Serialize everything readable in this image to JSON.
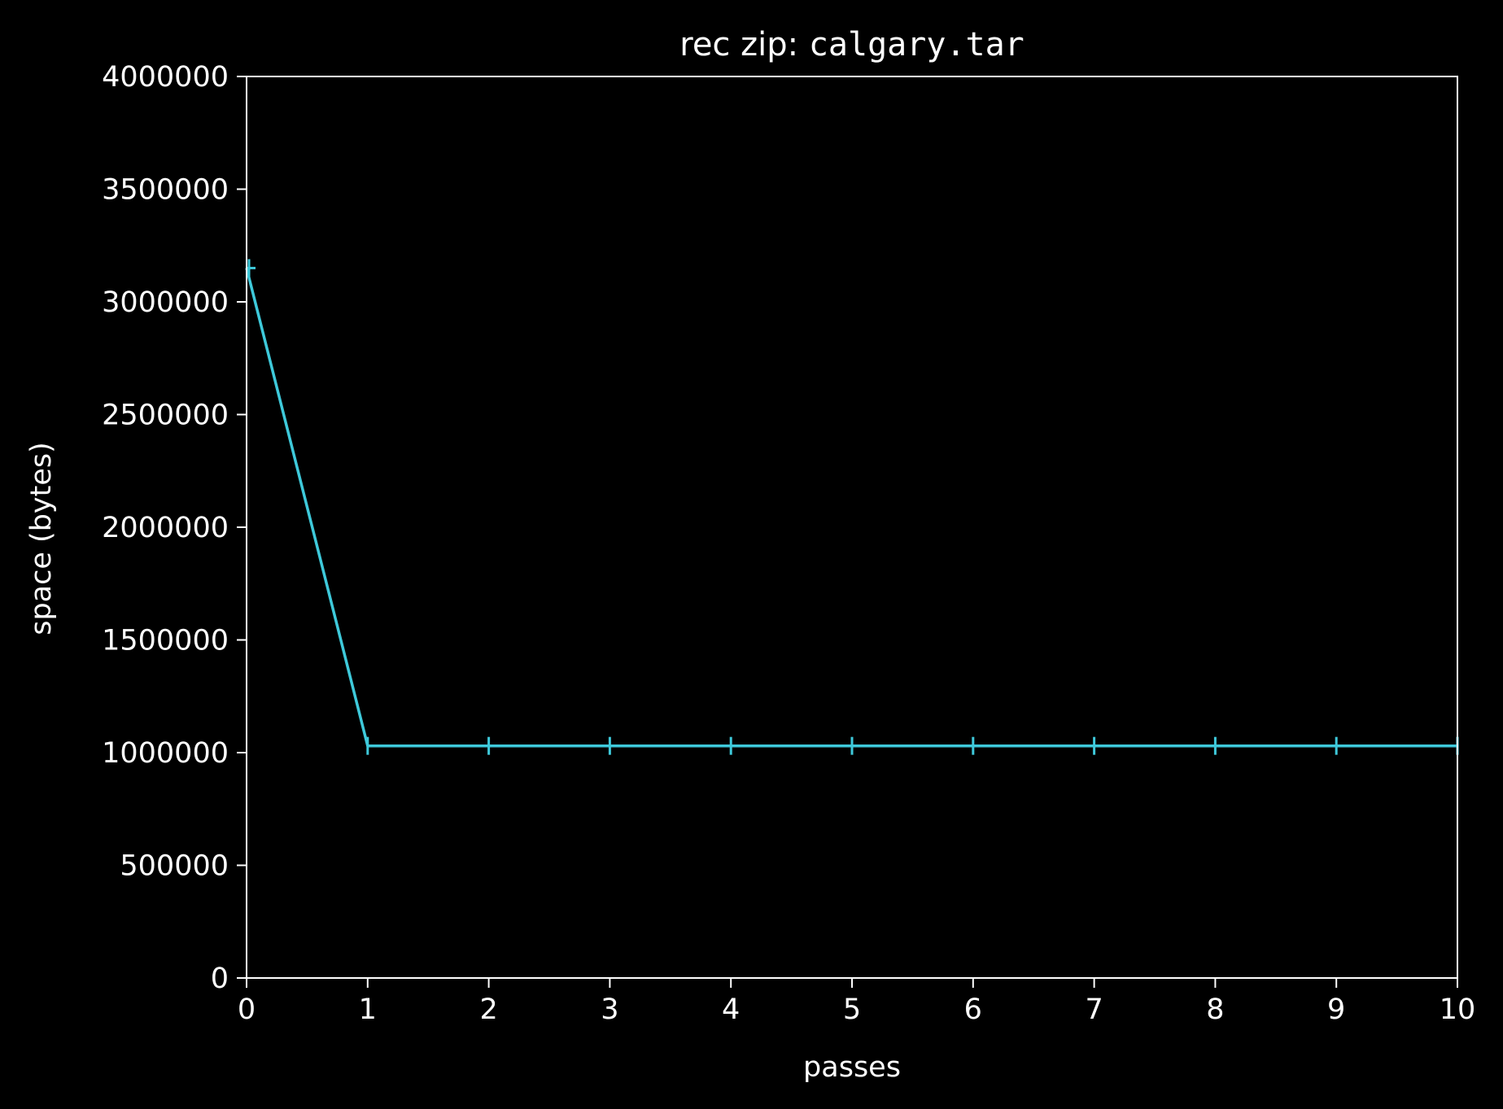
{
  "chart_data": {
    "type": "line",
    "title": {
      "prefix": "rec zip: ",
      "filename": "calgary.tar"
    },
    "xlabel": "passes",
    "ylabel": "space (bytes)",
    "xlim": [
      0,
      10
    ],
    "ylim": [
      0,
      4000000
    ],
    "x_ticks": [
      {
        "value": 0,
        "label": "0"
      },
      {
        "value": 1,
        "label": "1"
      },
      {
        "value": 2,
        "label": "2"
      },
      {
        "value": 3,
        "label": "3"
      },
      {
        "value": 4,
        "label": "4"
      },
      {
        "value": 5,
        "label": "5"
      },
      {
        "value": 6,
        "label": "6"
      },
      {
        "value": 7,
        "label": "7"
      },
      {
        "value": 8,
        "label": "8"
      },
      {
        "value": 9,
        "label": "9"
      },
      {
        "value": 10,
        "label": "10"
      }
    ],
    "y_ticks": [
      {
        "value": 0,
        "label": "0"
      },
      {
        "value": 500000,
        "label": "500000"
      },
      {
        "value": 1000000,
        "label": "1000000"
      },
      {
        "value": 1500000,
        "label": "1500000"
      },
      {
        "value": 2000000,
        "label": "2000000"
      },
      {
        "value": 2500000,
        "label": "2500000"
      },
      {
        "value": 3000000,
        "label": "3000000"
      },
      {
        "value": 3500000,
        "label": "3500000"
      },
      {
        "value": 4000000,
        "label": "4000000"
      }
    ],
    "grid": false,
    "legend": "none",
    "background_color": "#000000",
    "axis_color": "#ffffff",
    "series": [
      {
        "color": "#3ec9da",
        "marker": "vertical tick",
        "x": [
          0,
          1,
          2,
          3,
          4,
          5,
          6,
          7,
          8,
          9,
          10
        ],
        "y": [
          3150000,
          1030000,
          1030000,
          1030000,
          1030000,
          1030000,
          1030000,
          1030000,
          1030000,
          1030000,
          1030000
        ]
      }
    ]
  }
}
